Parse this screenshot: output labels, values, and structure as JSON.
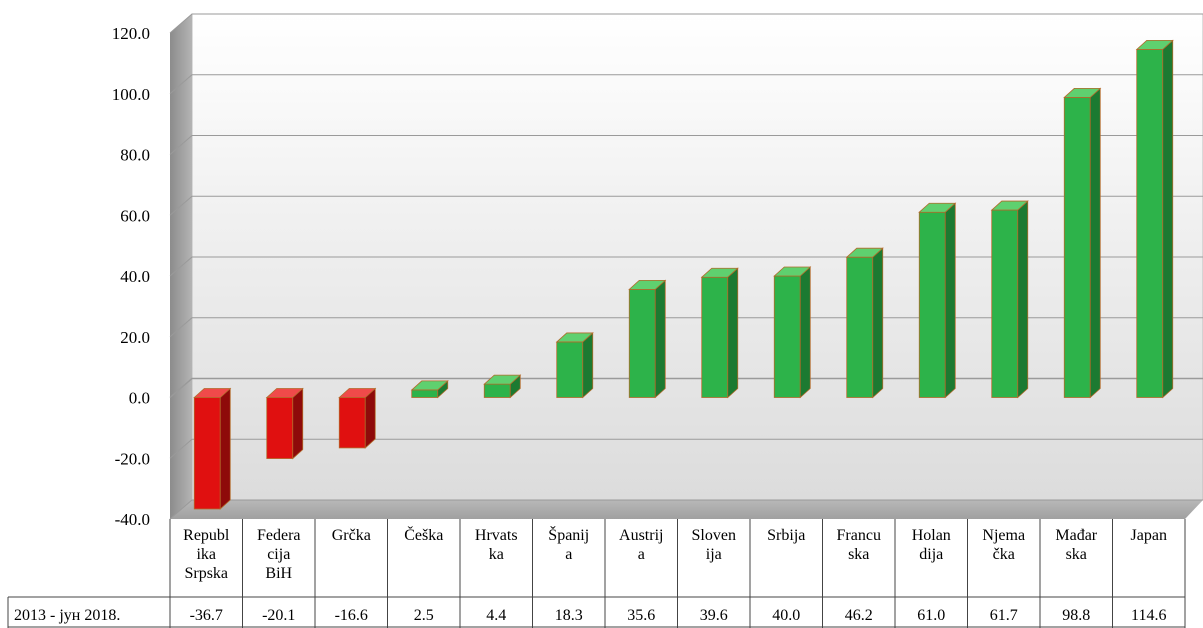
{
  "chart_data": {
    "type": "bar",
    "categories": [
      [
        "Republ",
        "ika",
        "Srpska"
      ],
      [
        "Federa",
        "cija",
        "BiH"
      ],
      [
        "Grčka"
      ],
      [
        "Češka"
      ],
      [
        "Hrvats",
        "ka"
      ],
      [
        "Španij",
        "a"
      ],
      [
        "Austrij",
        "a"
      ],
      [
        "Sloven",
        "ija"
      ],
      [
        "Srbija"
      ],
      [
        "Francu",
        "ska"
      ],
      [
        "Holan",
        "dija"
      ],
      [
        "Njema",
        "čka"
      ],
      [
        "Mađar",
        "ska"
      ],
      [
        "Japan"
      ]
    ],
    "series": [
      {
        "name": "2013 -  јун 2018.",
        "values": [
          -36.7,
          -20.1,
          -16.6,
          2.5,
          4.4,
          18.3,
          35.6,
          39.6,
          40.0,
          46.2,
          61.0,
          61.7,
          98.8,
          114.6
        ],
        "value_labels": [
          "-36.7",
          "-20.1",
          "-16.6",
          "2.5",
          "4.4",
          "18.3",
          "35.6",
          "39.6",
          "40.0",
          "46.2",
          "61.0",
          "61.7",
          "98.8",
          "114.6"
        ]
      }
    ],
    "y_ticks": [
      "120.0",
      "100.0",
      "80.0",
      "60.0",
      "40.0",
      "20.0",
      "0.0",
      "-20.0",
      "-40.0"
    ],
    "ylim": [
      -40,
      120
    ],
    "grid": true,
    "data_table": true,
    "colors": {
      "positive": "#2db34a",
      "negative": "#e01010",
      "wall": "#e8e8e8",
      "side_wall": "#9a9a9a",
      "gridline": "#9a9a9a"
    }
  }
}
